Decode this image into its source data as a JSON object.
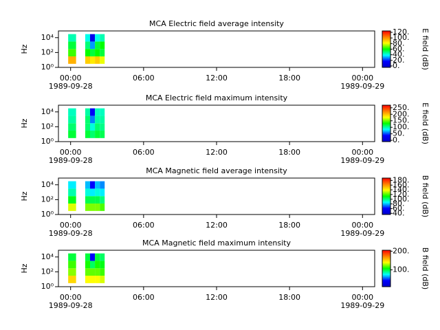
{
  "chart_data": [
    {
      "type": "spectrogram",
      "title": "MCA  Electric field average intensity",
      "ylabel": "Hz",
      "zlabel": "E field (dB)",
      "log_y": true,
      "xlim": [
        -1,
        25
      ],
      "ylim": [
        1,
        80000
      ],
      "xticks": [
        {
          "value": 0,
          "label": "00:00"
        },
        {
          "value": 6,
          "label": "06:00"
        },
        {
          "value": 12,
          "label": "12:00"
        },
        {
          "value": 18,
          "label": "18:00"
        },
        {
          "value": 24,
          "label": "00:00"
        }
      ],
      "x_date_labels": [
        {
          "value": 0,
          "label": "1989-09-28"
        },
        {
          "value": 24,
          "label": "1989-09-29"
        }
      ],
      "yticks": [
        {
          "value": 1,
          "label": "10⁰"
        },
        {
          "value": 100,
          "label": "10²"
        },
        {
          "value": 10000,
          "label": "10⁴"
        }
      ],
      "time_edges": [
        -0.2,
        0.45,
        1.2,
        1.6,
        2.0,
        2.4,
        2.8
      ],
      "freq_edges": [
        3,
        30,
        300,
        3000,
        30000
      ],
      "z": [
        [
          95,
          null,
          90,
          85,
          90,
          80
        ],
        [
          65,
          null,
          60,
          55,
          60,
          55
        ],
        [
          55,
          null,
          50,
          30,
          55,
          60
        ],
        [
          45,
          null,
          40,
          10,
          40,
          45
        ]
      ],
      "zlim": [
        -5,
        125
      ],
      "zticks": [
        {
          "value": 0,
          "label": "0."
        },
        {
          "value": 20,
          "label": "20."
        },
        {
          "value": 40,
          "label": "40."
        },
        {
          "value": 60,
          "label": "60."
        },
        {
          "value": 80,
          "label": "80."
        },
        {
          "value": 100,
          "label": "100."
        },
        {
          "value": 120,
          "label": "120."
        }
      ],
      "colormap": [
        "#0000c8",
        "#0000ff",
        "#00ffff",
        "#00ff00",
        "#ffff00",
        "#ff8000",
        "#ff0000"
      ]
    },
    {
      "type": "spectrogram",
      "title": "MCA  Electric field maximum intensity",
      "ylabel": "Hz",
      "zlabel": "E field (dB)",
      "log_y": true,
      "xlim": [
        -1,
        25
      ],
      "ylim": [
        1,
        80000
      ],
      "xticks": [
        {
          "value": 0,
          "label": "00:00"
        },
        {
          "value": 6,
          "label": "06:00"
        },
        {
          "value": 12,
          "label": "12:00"
        },
        {
          "value": 18,
          "label": "18:00"
        },
        {
          "value": 24,
          "label": "00:00"
        }
      ],
      "x_date_labels": [
        {
          "value": 0,
          "label": "1989-09-28"
        },
        {
          "value": 24,
          "label": "1989-09-29"
        }
      ],
      "yticks": [
        {
          "value": 1,
          "label": "10⁰"
        },
        {
          "value": 100,
          "label": "10²"
        },
        {
          "value": 10000,
          "label": "10⁴"
        }
      ],
      "time_edges": [
        -0.2,
        0.45,
        1.2,
        1.6,
        2.0,
        2.4,
        2.8
      ],
      "freq_edges": [
        3,
        30,
        300,
        3000,
        30000
      ],
      "z": [
        [
          120,
          null,
          120,
          110,
          120,
          115
        ],
        [
          110,
          null,
          110,
          90,
          110,
          105
        ],
        [
          100,
          null,
          110,
          60,
          100,
          100
        ],
        [
          95,
          null,
          100,
          30,
          95,
          95
        ]
      ],
      "zlim": [
        -10,
        270
      ],
      "zticks": [
        {
          "value": 0,
          "label": "0."
        },
        {
          "value": 50,
          "label": "50."
        },
        {
          "value": 100,
          "label": "100."
        },
        {
          "value": 150,
          "label": "150."
        },
        {
          "value": 200,
          "label": "200."
        },
        {
          "value": 250,
          "label": "250."
        }
      ],
      "colormap": [
        "#0000c8",
        "#0000ff",
        "#00ffff",
        "#00ff00",
        "#ffff00",
        "#ff8000",
        "#ff0000"
      ]
    },
    {
      "type": "spectrogram",
      "title": "MCA  Magnetic field average intensity",
      "ylabel": "Hz",
      "zlabel": "B field (dB)",
      "log_y": true,
      "xlim": [
        -1,
        25
      ],
      "ylim": [
        1,
        80000
      ],
      "xticks": [
        {
          "value": 0,
          "label": "00:00"
        },
        {
          "value": 6,
          "label": "06:00"
        },
        {
          "value": 12,
          "label": "12:00"
        },
        {
          "value": 18,
          "label": "18:00"
        },
        {
          "value": 24,
          "label": "00:00"
        }
      ],
      "x_date_labels": [
        {
          "value": 0,
          "label": "1989-09-28"
        },
        {
          "value": 24,
          "label": "1989-09-29"
        }
      ],
      "yticks": [
        {
          "value": 1,
          "label": "10⁰"
        },
        {
          "value": 100,
          "label": "10²"
        },
        {
          "value": 10000,
          "label": "10⁴"
        }
      ],
      "time_edges": [
        -0.2,
        0.45,
        1.2,
        1.6,
        2.0,
        2.4,
        2.8
      ],
      "freq_edges": [
        3,
        30,
        300,
        3000,
        30000
      ],
      "z": [
        [
          135,
          null,
          125,
          125,
          125,
          120
        ],
        [
          110,
          null,
          105,
          105,
          105,
          100
        ],
        [
          95,
          null,
          90,
          85,
          90,
          85
        ],
        [
          85,
          null,
          80,
          60,
          80,
          75
        ]
      ],
      "zlim": [
        35,
        190
      ],
      "zticks": [
        {
          "value": 40,
          "label": "40."
        },
        {
          "value": 60,
          "label": "60."
        },
        {
          "value": 80,
          "label": "80."
        },
        {
          "value": 100,
          "label": "100."
        },
        {
          "value": 120,
          "label": "120."
        },
        {
          "value": 140,
          "label": "140."
        },
        {
          "value": 160,
          "label": "160."
        },
        {
          "value": 180,
          "label": "180."
        }
      ],
      "colormap": [
        "#0000c8",
        "#0000ff",
        "#00ffff",
        "#00ff00",
        "#ffff00",
        "#ff8000",
        "#ff0000"
      ]
    },
    {
      "type": "spectrogram",
      "title": "MCA  Magnetic field maximum intensity",
      "ylabel": "Hz",
      "zlabel": "B field (dB)",
      "log_y": true,
      "xlim": [
        -1,
        25
      ],
      "ylim": [
        1,
        80000
      ],
      "xticks": [
        {
          "value": 0,
          "label": "00:00"
        },
        {
          "value": 6,
          "label": "06:00"
        },
        {
          "value": 12,
          "label": "12:00"
        },
        {
          "value": 18,
          "label": "18:00"
        },
        {
          "value": 24,
          "label": "00:00"
        }
      ],
      "x_date_labels": [
        {
          "value": 0,
          "label": "1989-09-28"
        },
        {
          "value": 24,
          "label": "1989-09-29"
        }
      ],
      "yticks": [
        {
          "value": 1,
          "label": "10⁰"
        },
        {
          "value": 100,
          "label": "10²"
        },
        {
          "value": 10000,
          "label": "10⁴"
        }
      ],
      "time_edges": [
        -0.2,
        0.45,
        1.2,
        1.6,
        2.0,
        2.4,
        2.8
      ],
      "freq_edges": [
        3,
        30,
        300,
        3000,
        30000
      ],
      "z": [
        [
          150,
          null,
          140,
          140,
          140,
          135
        ],
        [
          125,
          null,
          120,
          120,
          120,
          115
        ],
        [
          115,
          null,
          110,
          95,
          110,
          105
        ],
        [
          100,
          null,
          100,
          40,
          100,
          95
        ]
      ],
      "zlim": [
        10,
        205
      ],
      "zticks": [
        {
          "value": 100,
          "label": "100."
        },
        {
          "value": 200,
          "label": "200."
        }
      ],
      "colormap": [
        "#0000c8",
        "#0000ff",
        "#00ffff",
        "#00ff00",
        "#ffff00",
        "#ff8000",
        "#ff0000"
      ]
    }
  ]
}
